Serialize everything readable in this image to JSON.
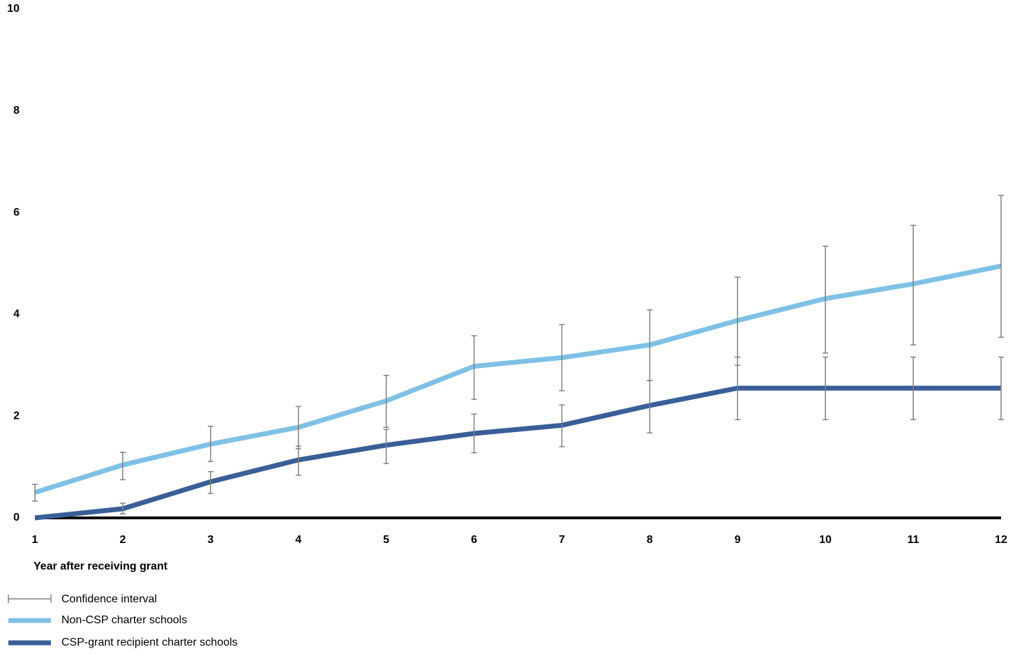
{
  "chart_data": {
    "type": "line",
    "x_label": "Year after receiving grant",
    "x": [
      1,
      2,
      3,
      4,
      5,
      6,
      7,
      8,
      9,
      10,
      11,
      12
    ],
    "xlim": [
      1,
      12
    ],
    "xticks": [
      1,
      2,
      3,
      4,
      5,
      6,
      7,
      8,
      9,
      10,
      11,
      12
    ],
    "ylim": [
      0,
      10
    ],
    "yticks": [
      0,
      2,
      4,
      6,
      8,
      10
    ],
    "grid": false,
    "zero_line": true,
    "legend": "bottom-left",
    "ci_legend": "Confidence interval",
    "ci_color": "#808080",
    "series": [
      {
        "name": "Non-CSP charter schools",
        "color": "#7fc1e6",
        "values": [
          0.5,
          1.04,
          1.45,
          1.78,
          2.3,
          2.98,
          3.15,
          3.4,
          3.88,
          4.31,
          4.6,
          4.95
        ],
        "ci_low": [
          0.33,
          0.75,
          1.11,
          1.36,
          1.78,
          2.33,
          2.5,
          2.7,
          3.0,
          3.24,
          3.4,
          3.55
        ],
        "ci_high": [
          0.66,
          1.29,
          1.8,
          2.19,
          2.8,
          3.58,
          3.8,
          4.09,
          4.73,
          5.34,
          5.75,
          6.34
        ]
      },
      {
        "name": "CSP-grant recipient charter schools",
        "color": "#3a5f98",
        "values": [
          0,
          0.18,
          0.71,
          1.14,
          1.43,
          1.66,
          1.82,
          2.21,
          2.55,
          2.55,
          2.55,
          2.55
        ],
        "ci_low": [
          null,
          0.08,
          0.48,
          0.84,
          1.07,
          1.28,
          1.4,
          1.67,
          1.93,
          1.93,
          1.93,
          1.93
        ],
        "ci_high": [
          null,
          0.29,
          0.91,
          1.41,
          1.74,
          2.04,
          2.22,
          2.7,
          3.16,
          3.16,
          3.16,
          3.16
        ]
      }
    ]
  }
}
